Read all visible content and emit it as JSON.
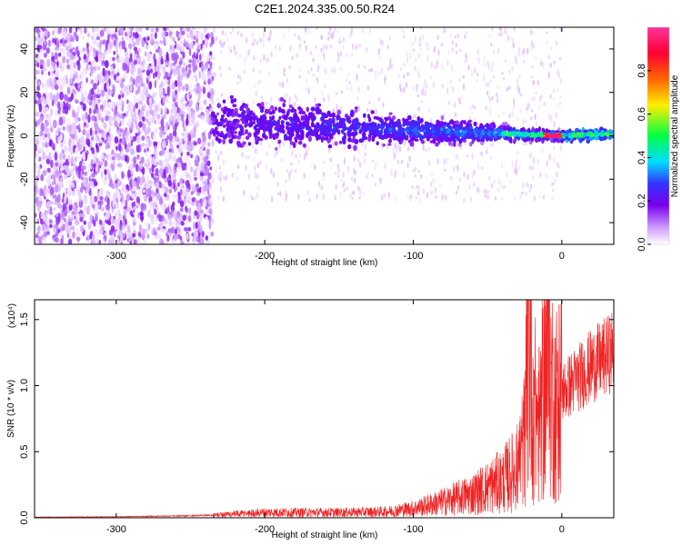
{
  "title": "C2E1.2024.335.00.50.R24",
  "chart_data": [
    {
      "type": "heatmap",
      "xlabel": "Height of straight line (km)",
      "ylabel": "Frequency (Hz)",
      "xlim": [
        -355,
        35
      ],
      "ylim": [
        -50,
        50
      ],
      "xticks": [
        -300,
        -200,
        -100,
        0
      ],
      "yticks": [
        -40,
        -20,
        0,
        20,
        40
      ],
      "colorbar": {
        "label": "Normalized spectral amplitude",
        "range": [
          0,
          1
        ],
        "ticks": [
          "0.0",
          "0.2",
          "0.4",
          "0.6",
          "0.8"
        ],
        "colors": [
          "#ffffff",
          "#cc99ff",
          "#7700ee",
          "#3333ff",
          "#00ddff",
          "#00ff44",
          "#ffee00",
          "#ff6600",
          "#ff0033",
          "#ff3399"
        ]
      },
      "features": {
        "noise_region_x": [
          -355,
          -235
        ],
        "signal_band": {
          "x": [
            -235,
            0,
            35
          ],
          "center_hz": [
            6,
            0,
            1
          ],
          "half_width_hz": [
            10,
            2,
            2
          ]
        },
        "peak": {
          "x": -5,
          "hz": 0,
          "amplitude": 0.95
        }
      }
    },
    {
      "type": "line",
      "xlabel": "Height of straight line (km)",
      "ylabel": "SNR (10 * v/v)",
      "y_multiplier": "(x10⁴)",
      "xlim": [
        -355,
        35
      ],
      "ylim": [
        0,
        1.65
      ],
      "xticks": [
        -300,
        -200,
        -100,
        0
      ],
      "yticks": [
        "0.0",
        "0.5",
        "1.0",
        "1.5"
      ],
      "grid": false,
      "series": [
        {
          "color": "#ee2222",
          "x": [
            -355,
            -300,
            -250,
            -235,
            -200,
            -150,
            -120,
            -100,
            -80,
            -60,
            -40,
            -30,
            -25,
            -22,
            -20,
            -15,
            -10,
            -5,
            0,
            10,
            20,
            30,
            35
          ],
          "y": [
            0.005,
            0.008,
            0.015,
            0.02,
            0.04,
            0.04,
            0.045,
            0.07,
            0.12,
            0.18,
            0.28,
            0.38,
            0.6,
            1.55,
            0.9,
            0.7,
            1.2,
            0.85,
            0.95,
            1.05,
            1.15,
            1.22,
            1.27
          ]
        }
      ]
    }
  ]
}
